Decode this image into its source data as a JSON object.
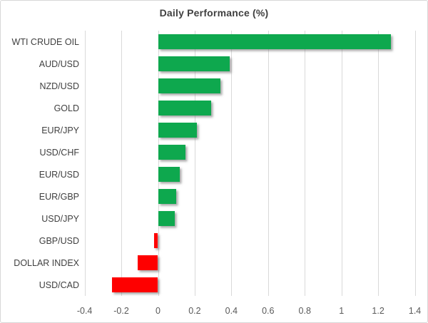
{
  "chart_data": {
    "type": "bar",
    "orientation": "horizontal",
    "title": "Daily Performance (%)",
    "categories": [
      "WTI CRUDE OIL",
      "AUD/USD",
      "NZD/USD",
      "GOLD",
      "EUR/JPY",
      "USD/CHF",
      "EUR/USD",
      "EUR/GBP",
      "USD/JPY",
      "GBP/USD",
      "DOLLAR INDEX",
      "USD/CAD"
    ],
    "values": [
      1.27,
      0.39,
      0.34,
      0.29,
      0.21,
      0.15,
      0.12,
      0.1,
      0.09,
      -0.02,
      -0.11,
      -0.25
    ],
    "xlabel": "",
    "ylabel": "",
    "xlim": [
      -0.4,
      1.4
    ],
    "xticks": [
      -0.4,
      -0.2,
      0,
      0.2,
      0.4,
      0.6,
      0.8,
      1,
      1.2,
      1.4
    ],
    "xtick_labels": [
      "-0.4",
      "-0.2",
      "0",
      "0.2",
      "0.4",
      "0.6",
      "0.8",
      "1",
      "1.2",
      "1.4"
    ],
    "grid": true,
    "legend": false,
    "colors": {
      "positive": "#0ea84e",
      "negative": "#fe0000",
      "gridline": "#d9d9d9",
      "title_text": "#404040",
      "category_text": "#404040",
      "tick_text": "#595959"
    }
  }
}
